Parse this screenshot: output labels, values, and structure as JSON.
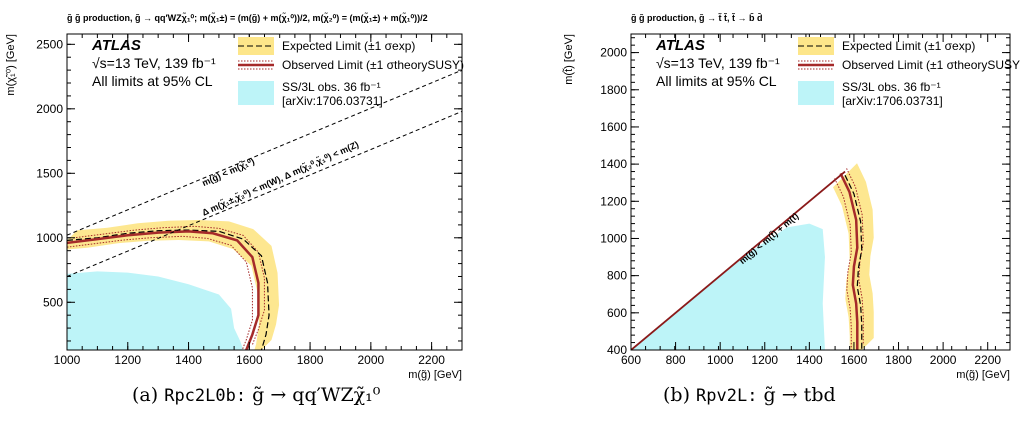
{
  "chart_data": [
    {
      "type": "line",
      "title": "g̃ g̃ production, g̃ → qq′WZχ̃₁⁰; m(χ̃₁±) = (m(g̃) + m(χ̃₁⁰))/2, m(χ̃₂⁰) = (m(χ̃₁±) + m(χ̃₁⁰))/2",
      "xlabel": "m(g̃) [GeV]",
      "ylabel": "m(χ̃₁⁰) [GeV]",
      "xlim": [
        1000,
        2300
      ],
      "ylim": [
        130,
        2580
      ],
      "x_ticks": [
        1000,
        1200,
        1400,
        1600,
        1800,
        2000,
        2200
      ],
      "y_ticks": [
        500,
        1000,
        1500,
        2000,
        2500
      ],
      "atlas_label": "ATLAS",
      "energy_label": "√s=13 TeV, 139 fb⁻¹",
      "cl_label": "All limits at 95% CL",
      "legend": {
        "expected": "Expected Limit (±1 σexp)",
        "observed": "Observed Limit (±1 σtheorySUSY)",
        "prior_1": "SS/3L obs. 36 fb⁻¹",
        "prior_2": "[arXiv:1706.03731]",
        "placement": "top-right"
      },
      "kinematic_labels": [
        "m(g̃) < m(χ̃₁⁰)",
        "Δ m(χ̃₁±,χ̃₂⁰) < m(W), Δ m(χ̃₂⁰,χ̃₁⁰) < m(Z)"
      ],
      "series": [
        {
          "name": "Observed Limit",
          "color": "#a52a2a",
          "x": [
            1000,
            1100,
            1200,
            1300,
            1400,
            1480,
            1560,
            1610,
            1630,
            1630,
            1610,
            1590
          ],
          "y": [
            960,
            990,
            1020,
            1040,
            1050,
            1035,
            980,
            850,
            650,
            400,
            250,
            130
          ]
        },
        {
          "name": "Expected Limit",
          "color": "#000000",
          "x": [
            1000,
            1100,
            1200,
            1300,
            1400,
            1500,
            1580,
            1640,
            1660,
            1665,
            1655,
            1640
          ],
          "y": [
            980,
            1000,
            1035,
            1055,
            1060,
            1050,
            990,
            860,
            650,
            400,
            250,
            130
          ]
        },
        {
          "name": "SS/3L obs. 36 fb⁻¹",
          "color": "#bdf4f8",
          "x": [
            1000,
            1100,
            1200,
            1300,
            1400,
            1500,
            1540,
            1550,
            1570,
            1580
          ],
          "y": [
            720,
            740,
            730,
            700,
            640,
            560,
            450,
            300,
            200,
            130
          ]
        }
      ]
    },
    {
      "type": "line",
      "title": "g̃ g̃ production, g̃ → t̃ t̃, t̃ → b̄ d̄",
      "xlabel": "m(g̃) [GeV]",
      "ylabel": "m(t̃) [GeV]",
      "xlim": [
        600,
        2300
      ],
      "ylim": [
        400,
        2100
      ],
      "x_ticks": [
        600,
        800,
        1000,
        1200,
        1400,
        1600,
        1800,
        2000,
        2200
      ],
      "y_ticks": [
        400,
        600,
        800,
        1000,
        1200,
        1400,
        1600,
        1800,
        2000
      ],
      "atlas_label": "ATLAS",
      "energy_label": "√s=13 TeV, 139 fb⁻¹",
      "cl_label": "All limits at 95% CL",
      "legend": {
        "expected": "Expected Limit (±1 σexp)",
        "observed": "Observed Limit (±1 σtheorySUSY)",
        "prior_1": "SS/3L obs. 36 fb⁻¹",
        "prior_2": "[arXiv:1706.03731]",
        "placement": "top-right"
      },
      "kinematic_labels": [
        "m(g̃) < m(t̃) + m(t)"
      ],
      "series": [
        {
          "name": "Observed Limit",
          "color": "#a52a2a",
          "x": [
            1540,
            1580,
            1610,
            1615,
            1600,
            1595,
            1610,
            1615,
            1615
          ],
          "y": [
            1350,
            1250,
            1100,
            950,
            850,
            750,
            650,
            550,
            400
          ]
        },
        {
          "name": "Expected Limit",
          "color": "#000000",
          "x": [
            1560,
            1600,
            1630,
            1635,
            1620,
            1615,
            1630,
            1635,
            1635
          ],
          "y": [
            1340,
            1240,
            1090,
            940,
            840,
            740,
            640,
            540,
            400
          ]
        },
        {
          "name": "SS/3L obs. 36 fb⁻¹",
          "color": "#bdf4f8",
          "x": [
            600,
            900,
            1100,
            1300,
            1400,
            1460,
            1470,
            1460,
            1470
          ],
          "y": [
            400,
            700,
            900,
            1060,
            1080,
            1050,
            900,
            650,
            400
          ]
        }
      ]
    }
  ],
  "captions": [
    {
      "label": "(a)",
      "code": "Rpc2L0b:",
      "math": "g̃ → qq′WZχ̃₁⁰"
    },
    {
      "label": "(b)",
      "code": "Rpv2L:",
      "math": "g̃ → tbd"
    }
  ]
}
